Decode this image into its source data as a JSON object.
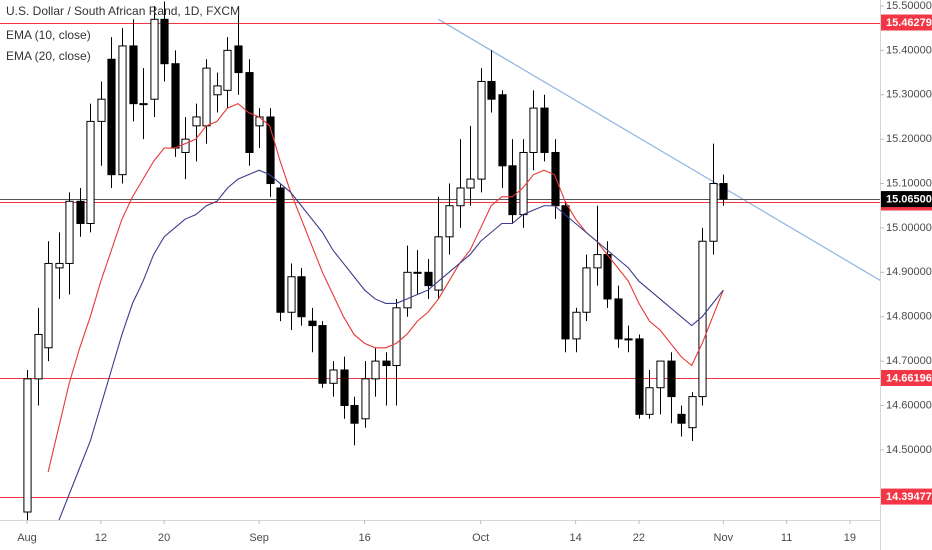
{
  "chart_data": {
    "type": "candlestick",
    "title": "U.S. Dollar / South African Rand, 1D, FXCM",
    "open": [
      14.36,
      14.66,
      14.73,
      14.91,
      14.92,
      15.06,
      15.01,
      15.24,
      15.38,
      15.12,
      15.41,
      15.28,
      15.29,
      15.47,
      15.37,
      15.17,
      15.23,
      15.23,
      15.3,
      15.31,
      15.41,
      15.35,
      15.23,
      15.25,
      15.09,
      14.81,
      14.89,
      14.79,
      14.78,
      14.65,
      14.68,
      14.6,
      14.57,
      14.66,
      14.7,
      14.69,
      14.82,
      14.9,
      14.9,
      14.86,
      14.98,
      15.05,
      15.09,
      15.11,
      15.33,
      15.3,
      15.14,
      15.03,
      15.17,
      15.27,
      15.17,
      15.05,
      14.75,
      14.81,
      14.91,
      14.94,
      14.84,
      14.75,
      14.75,
      14.58,
      14.64,
      14.7,
      14.58,
      14.55,
      14.62,
      14.97,
      15.1
    ],
    "high": [
      14.68,
      14.82,
      14.97,
      14.99,
      15.08,
      15.09,
      15.28,
      15.33,
      15.43,
      15.45,
      15.47,
      15.36,
      15.5,
      15.51,
      15.4,
      15.25,
      15.28,
      15.38,
      15.35,
      15.43,
      15.5,
      15.38,
      15.27,
      15.27,
      15.1,
      14.92,
      14.91,
      14.82,
      14.79,
      14.7,
      14.71,
      14.62,
      14.7,
      14.73,
      14.72,
      14.84,
      14.96,
      14.95,
      14.93,
      15.07,
      15.1,
      15.2,
      15.23,
      15.36,
      15.4,
      15.31,
      15.2,
      15.2,
      15.31,
      15.3,
      15.2,
      15.06,
      14.82,
      14.94,
      15.05,
      14.97,
      14.87,
      14.78,
      14.76,
      14.68,
      14.7,
      14.72,
      14.6,
      14.63,
      15.0,
      15.19,
      15.12
    ],
    "low": [
      14.3,
      14.6,
      14.7,
      14.84,
      14.85,
      14.98,
      14.99,
      15.14,
      15.09,
      15.1,
      15.24,
      15.2,
      15.25,
      15.33,
      15.16,
      15.11,
      15.15,
      15.19,
      15.26,
      15.27,
      15.3,
      15.14,
      15.18,
      15.07,
      14.79,
      14.77,
      14.78,
      14.72,
      14.64,
      14.62,
      14.57,
      14.51,
      14.55,
      14.62,
      14.6,
      14.6,
      14.8,
      14.85,
      14.84,
      14.84,
      14.94,
      15.0,
      15.05,
      15.08,
      15.26,
      15.09,
      15.01,
      15.0,
      15.13,
      15.15,
      15.02,
      14.72,
      14.72,
      14.79,
      14.87,
      14.82,
      14.73,
      14.72,
      14.57,
      14.57,
      14.58,
      14.56,
      14.53,
      14.52,
      14.6,
      14.94,
      15.05
    ],
    "close": [
      14.66,
      14.76,
      14.92,
      14.92,
      15.06,
      15.01,
      15.24,
      15.29,
      15.12,
      15.41,
      15.28,
      15.28,
      15.47,
      15.37,
      15.18,
      15.2,
      15.25,
      15.36,
      15.32,
      15.4,
      15.35,
      15.17,
      15.25,
      15.1,
      14.81,
      14.89,
      14.8,
      14.78,
      14.65,
      14.68,
      14.6,
      14.56,
      14.66,
      14.7,
      14.69,
      14.82,
      14.9,
      14.9,
      14.87,
      14.98,
      15.05,
      15.09,
      15.11,
      15.33,
      15.29,
      15.14,
      15.03,
      15.17,
      15.27,
      15.17,
      15.05,
      14.75,
      14.81,
      14.91,
      14.94,
      14.84,
      14.75,
      14.75,
      14.58,
      14.64,
      14.7,
      14.62,
      14.56,
      14.62,
      14.97,
      15.1,
      15.065
    ],
    "up_color": "#ffffff",
    "down_color": "#000000",
    "series": [
      {
        "name": "EMA (10, close)",
        "color": "#e53935",
        "values": [
          null,
          null,
          14.45,
          14.55,
          14.65,
          14.73,
          14.8,
          14.88,
          14.95,
          15.02,
          15.07,
          15.11,
          15.15,
          15.18,
          15.18,
          15.19,
          15.2,
          15.23,
          15.24,
          15.27,
          15.28,
          15.26,
          15.25,
          15.23,
          15.15,
          15.08,
          15.02,
          14.96,
          14.9,
          14.85,
          14.8,
          14.76,
          14.74,
          14.73,
          14.73,
          14.74,
          14.76,
          14.79,
          14.81,
          14.84,
          14.88,
          14.92,
          14.95,
          15.0,
          15.05,
          15.07,
          15.07,
          15.09,
          15.12,
          15.13,
          15.12,
          15.06,
          15.02,
          14.99,
          14.97,
          14.94,
          14.91,
          14.88,
          14.83,
          14.79,
          14.77,
          14.74,
          14.71,
          14.69,
          14.74,
          14.8,
          14.86
        ]
      },
      {
        "name": "EMA (20, close)",
        "color": "#3c3c8c",
        "values": [
          null,
          null,
          null,
          14.34,
          14.4,
          14.46,
          14.52,
          14.6,
          14.68,
          14.76,
          14.83,
          14.88,
          14.94,
          14.98,
          15.0,
          15.02,
          15.03,
          15.05,
          15.06,
          15.09,
          15.11,
          15.12,
          15.13,
          15.12,
          15.1,
          15.08,
          15.05,
          15.02,
          14.99,
          14.95,
          14.92,
          14.89,
          14.86,
          14.84,
          14.83,
          14.83,
          14.84,
          14.85,
          14.86,
          14.88,
          14.9,
          14.92,
          14.94,
          14.97,
          14.99,
          15.01,
          15.01,
          15.03,
          15.04,
          15.05,
          15.05,
          15.03,
          15.01,
          14.99,
          14.97,
          14.95,
          14.93,
          14.91,
          14.88,
          14.86,
          14.84,
          14.82,
          14.8,
          14.78,
          14.8,
          14.83,
          14.86
        ]
      }
    ],
    "levels": [
      15.46279,
      15.05731,
      14.66196,
      14.39477
    ],
    "level_color": "#f23645",
    "last_price": {
      "value": 15.065,
      "label": "15.06500"
    },
    "last_price_color": "#000000",
    "trendline": {
      "x": [
        39,
        81
      ],
      "y": [
        15.47,
        14.88
      ],
      "color": "#8fb3e3"
    },
    "xlim": [
      -2.56,
      80.85
    ],
    "ylim": [
      14.342,
      15.5135
    ],
    "xticks": [
      {
        "value": 0,
        "label": "Aug"
      },
      {
        "value": 7,
        "label": "12"
      },
      {
        "value": 13,
        "label": "20"
      },
      {
        "value": 22,
        "label": "Sep"
      },
      {
        "value": 32,
        "label": "16"
      },
      {
        "value": 43,
        "label": "Oct"
      },
      {
        "value": 52,
        "label": "14"
      },
      {
        "value": 58,
        "label": "22"
      },
      {
        "value": 66,
        "label": "Nov"
      },
      {
        "value": 72,
        "label": "11"
      },
      {
        "value": 78,
        "label": "19"
      }
    ],
    "yticks": [
      {
        "value": 15.5,
        "label": "15.50000"
      },
      {
        "value": 15.4,
        "label": "15.40000"
      },
      {
        "value": 15.3,
        "label": "15.30000"
      },
      {
        "value": 15.2,
        "label": "15.20000"
      },
      {
        "value": 15.1,
        "label": "15.10000"
      },
      {
        "value": 15.0,
        "label": "15.00000"
      },
      {
        "value": 14.9,
        "label": "14.90000"
      },
      {
        "value": 14.8,
        "label": "14.80000"
      },
      {
        "value": 14.7,
        "label": "14.70000"
      },
      {
        "value": 14.6,
        "label": "14.60000"
      },
      {
        "value": 14.5,
        "label": "14.50000"
      }
    ],
    "grid": false
  }
}
